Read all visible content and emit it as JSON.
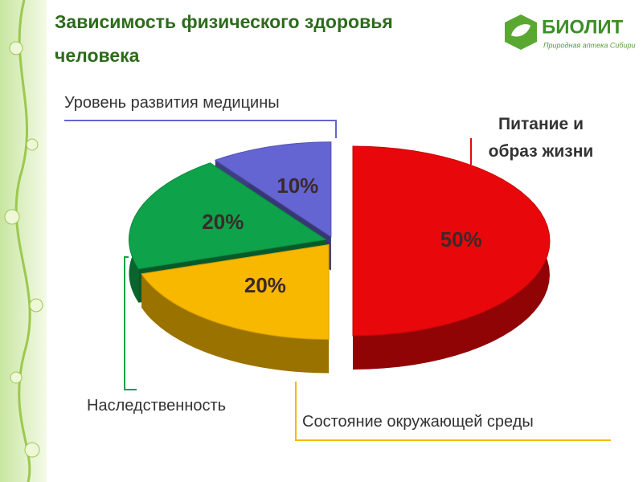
{
  "header": {
    "title": "Зависимость физического здоровья человека"
  },
  "logo": {
    "name": "БИОЛИТ",
    "tagline": "Природная аптека Сибири"
  },
  "chart_data": {
    "type": "pie",
    "categories": [
      "Питание и образ жизни",
      "Состояние окружающей среды",
      "Наследственность",
      "Уровень развития медицины"
    ],
    "values": [
      50,
      20,
      20,
      10
    ],
    "value_labels": [
      "50%",
      "20%",
      "20%",
      "10%"
    ],
    "colors": [
      "#e8070a",
      "#f8b800",
      "#0ea24a",
      "#6464d2"
    ]
  }
}
